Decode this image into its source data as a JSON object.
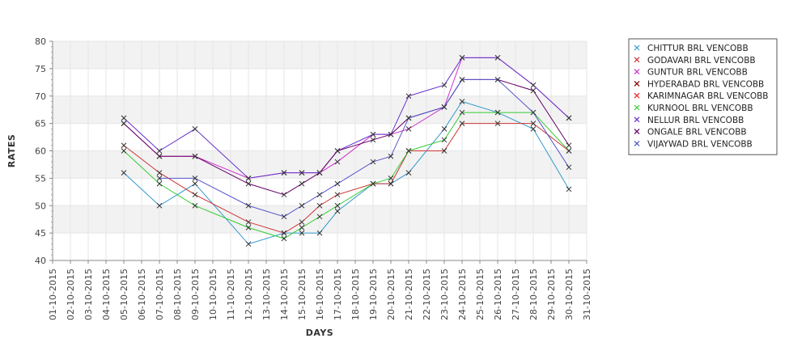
{
  "chart_data": {
    "type": "line",
    "title": "",
    "xlabel": "DAYS",
    "ylabel": "RATES",
    "ylim": [
      40,
      80
    ],
    "y_ticks": [
      40,
      45,
      50,
      55,
      60,
      65,
      70,
      75,
      80
    ],
    "grid": true,
    "legend_position": "right",
    "marker": "x",
    "categories": [
      "01-10-2015",
      "02-10-2015",
      "03-10-2015",
      "04-10-2015",
      "05-10-2015",
      "06-10-2015",
      "07-10-2015",
      "08-10-2015",
      "09-10-2015",
      "10-10-2015",
      "11-10-2015",
      "12-10-2015",
      "13-10-2015",
      "14-10-2015",
      "15-10-2015",
      "16-10-2015",
      "17-10-2015",
      "18-10-2015",
      "19-10-2015",
      "20-10-2015",
      "21-10-2015",
      "22-10-2015",
      "23-10-2015",
      "24-10-2015",
      "25-10-2015",
      "26-10-2015",
      "27-10-2015",
      "28-10-2015",
      "29-10-2015",
      "30-10-2015",
      "31-10-2015"
    ],
    "series": [
      {
        "name": "CHITTUR BRL VENCOBB",
        "color": "#3399cc",
        "values": [
          null,
          null,
          null,
          null,
          56,
          null,
          50,
          null,
          54,
          null,
          null,
          43,
          null,
          45,
          45,
          45,
          49,
          null,
          54,
          54,
          56,
          null,
          64,
          69,
          null,
          67,
          null,
          64,
          null,
          53,
          null
        ]
      },
      {
        "name": "GODAVARI BRL VENCOBB",
        "color": "#cc3333",
        "values": [
          null,
          null,
          null,
          null,
          61,
          null,
          56,
          null,
          52,
          null,
          null,
          47,
          null,
          45,
          47,
          50,
          52,
          null,
          54,
          54,
          60,
          null,
          60,
          65,
          null,
          65,
          null,
          65,
          null,
          60,
          null
        ]
      },
      {
        "name": "GUNTUR BRL VENCOBB",
        "color": "#cc33cc",
        "values": [
          null,
          null,
          null,
          null,
          65,
          null,
          59,
          null,
          59,
          null,
          null,
          55,
          null,
          56,
          56,
          56,
          58,
          null,
          63,
          63,
          64,
          null,
          68,
          77,
          null,
          77,
          null,
          72,
          null,
          66,
          null
        ]
      },
      {
        "name": "HYDERABAD BRL VENCOBB",
        "color": "#800000",
        "values": [
          null,
          null,
          null,
          null,
          null,
          null,
          null,
          null,
          null,
          null,
          null,
          null,
          null,
          null,
          null,
          null,
          null,
          null,
          null,
          null,
          null,
          null,
          null,
          null,
          null,
          null,
          null,
          null,
          null,
          null,
          null
        ]
      },
      {
        "name": "KARIMNAGAR BRL VENCOBB",
        "color": "#ee2222",
        "values": [
          null,
          null,
          null,
          null,
          null,
          null,
          null,
          null,
          null,
          null,
          null,
          null,
          null,
          null,
          null,
          null,
          null,
          null,
          null,
          null,
          null,
          null,
          null,
          null,
          null,
          null,
          null,
          null,
          null,
          null,
          null
        ]
      },
      {
        "name": "KURNOOL BRL VENCOBB",
        "color": "#33cc33",
        "values": [
          null,
          null,
          null,
          null,
          60,
          null,
          54,
          null,
          50,
          null,
          null,
          46,
          null,
          44,
          46,
          48,
          50,
          null,
          54,
          55,
          60,
          null,
          62,
          67,
          null,
          67,
          null,
          67,
          null,
          60,
          null
        ]
      },
      {
        "name": "NELLUR BRL VENCOBB",
        "color": "#6633cc",
        "values": [
          null,
          null,
          null,
          null,
          66,
          null,
          60,
          null,
          64,
          null,
          null,
          55,
          null,
          56,
          56,
          56,
          60,
          null,
          63,
          63,
          70,
          null,
          72,
          77,
          null,
          77,
          null,
          72,
          null,
          66,
          null
        ]
      },
      {
        "name": "ONGALE BRL VENCOBB",
        "color": "#660066",
        "values": [
          null,
          null,
          null,
          null,
          65,
          null,
          59,
          null,
          59,
          null,
          null,
          54,
          null,
          52,
          54,
          56,
          60,
          null,
          62,
          63,
          66,
          null,
          68,
          73,
          null,
          73,
          null,
          71,
          null,
          61,
          null
        ]
      },
      {
        "name": "VIJAYWAD BRL VENCOBB",
        "color": "#5555cc",
        "values": [
          null,
          null,
          null,
          null,
          null,
          null,
          55,
          null,
          55,
          null,
          null,
          50,
          null,
          48,
          50,
          52,
          54,
          null,
          58,
          59,
          66,
          null,
          68,
          73,
          null,
          73,
          null,
          67,
          null,
          57,
          null
        ]
      }
    ]
  }
}
